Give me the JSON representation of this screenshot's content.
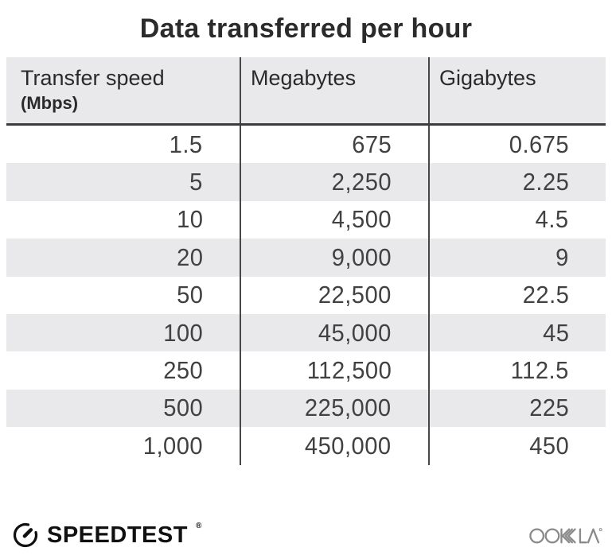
{
  "title": "Data transferred per hour",
  "table": {
    "columns": [
      {
        "label": "Transfer speed",
        "sublabel": "(Mbps)"
      },
      {
        "label": "Megabytes",
        "sublabel": ""
      },
      {
        "label": "Gigabytes",
        "sublabel": ""
      }
    ],
    "rows": [
      [
        "1.5",
        "675",
        "0.675"
      ],
      [
        "5",
        "2,250",
        "2.25"
      ],
      [
        "10",
        "4,500",
        "4.5"
      ],
      [
        "20",
        "9,000",
        "9"
      ],
      [
        "50",
        "22,500",
        "22.5"
      ],
      [
        "100",
        "45,000",
        "45"
      ],
      [
        "250",
        "112,500",
        "112.5"
      ],
      [
        "500",
        "225,000",
        "225"
      ],
      [
        "1,000",
        "450,000",
        "450"
      ]
    ]
  },
  "footer": {
    "speedtest_label": "SPEEDTEST",
    "speedtest_reg_mark": "®",
    "ookla_label": "OOKLA"
  },
  "colors": {
    "header_bg": "#e9e9ec",
    "stripe_bg": "#e9e9ec",
    "divider": "#474747",
    "header_rule": "#3c3c3c",
    "title_text": "#2b2b2b",
    "number_text": "#414141",
    "brand_black": "#101010",
    "ookla_gray": "#8a8a8a"
  },
  "chart_data": {
    "type": "table",
    "title": "Data transferred per hour",
    "columns": [
      "Transfer speed (Mbps)",
      "Megabytes",
      "Gigabytes"
    ],
    "rows": [
      [
        1.5,
        675,
        0.675
      ],
      [
        5,
        2250,
        2.25
      ],
      [
        10,
        4500,
        4.5
      ],
      [
        20,
        9000,
        9
      ],
      [
        50,
        22500,
        22.5
      ],
      [
        100,
        45000,
        45
      ],
      [
        250,
        112500,
        112.5
      ],
      [
        500,
        225000,
        225
      ],
      [
        1000,
        450000,
        450
      ]
    ]
  }
}
